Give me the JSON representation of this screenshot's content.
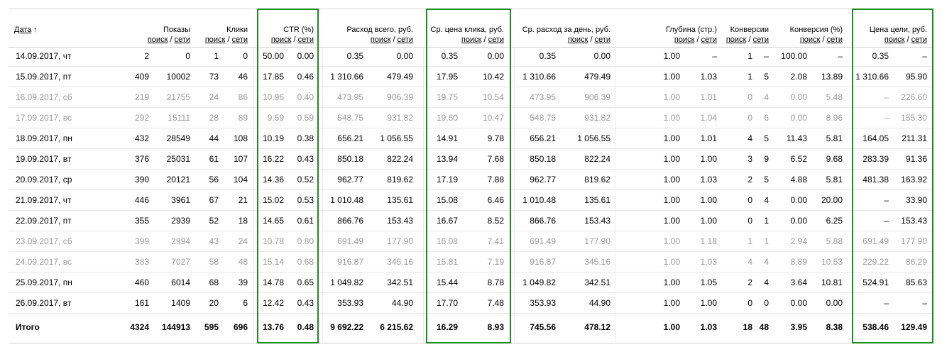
{
  "header": {
    "date": {
      "label": "Дата",
      "sort_indicator": "↑"
    },
    "sublabels": [
      "поиск",
      "сети"
    ],
    "separator": "/",
    "groups": [
      {
        "title": "Показы",
        "highlighted": false
      },
      {
        "title": "Клики",
        "highlighted": false
      },
      {
        "title": "CTR (%)",
        "highlighted": true
      },
      {
        "title": "Расход всего, руб.",
        "highlighted": false
      },
      {
        "title": "Ср. цена клика, руб.",
        "highlighted": true
      },
      {
        "title": "Ср. расход за день, руб.",
        "highlighted": false
      },
      {
        "title": "Глубина (стр.)",
        "highlighted": false
      },
      {
        "title": "Конверсии",
        "highlighted": false
      },
      {
        "title": "Конверсия (%)",
        "highlighted": false
      },
      {
        "title": "Цена цели, руб.",
        "highlighted": true
      }
    ]
  },
  "table": {
    "rows": [
      {
        "style": "normal",
        "cells": [
          "14.09.2017, чт",
          "2",
          "0",
          "1",
          "0",
          "50.00",
          "0.00",
          "0.35",
          "0.00",
          "0.35",
          "0.00",
          "0.35",
          "0.00",
          "1.00",
          "–",
          "1",
          "–",
          "100.00",
          "–",
          "0.35",
          "–"
        ]
      },
      {
        "style": "normal",
        "cells": [
          "15.09.2017, пт",
          "409",
          "10002",
          "73",
          "46",
          "17.85",
          "0.46",
          "1 310.66",
          "479.49",
          "17.95",
          "10.42",
          "1 310.66",
          "479.49",
          "1.00",
          "1.03",
          "1",
          "5",
          "2.08",
          "13.89",
          "1 310.66",
          "95.90"
        ]
      },
      {
        "style": "muted",
        "cells": [
          "16.09.2017, сб",
          "219",
          "21755",
          "24",
          "86",
          "10.96",
          "0.40",
          "473.95",
          "906.39",
          "19.75",
          "10.54",
          "473.95",
          "906.39",
          "1.00",
          "1.01",
          "0",
          "4",
          "0.00",
          "5.48",
          "–",
          "226.60"
        ]
      },
      {
        "style": "muted",
        "cells": [
          "17.09.2017, вс",
          "292",
          "15111",
          "28",
          "89",
          "9.59",
          "0.59",
          "548.75",
          "931.82",
          "19.60",
          "10.47",
          "548.75",
          "931.82",
          "1.00",
          "1.04",
          "0",
          "6",
          "0.00",
          "8.96",
          "–",
          "155.30"
        ]
      },
      {
        "style": "normal",
        "cells": [
          "18.09.2017, пн",
          "432",
          "28549",
          "44",
          "108",
          "10.19",
          "0.38",
          "656.21",
          "1 056.55",
          "14.91",
          "9.78",
          "656.21",
          "1 056.55",
          "1.00",
          "1.01",
          "4",
          "5",
          "11.43",
          "5.81",
          "164.05",
          "211.31"
        ]
      },
      {
        "style": "normal",
        "cells": [
          "19.09.2017, вт",
          "376",
          "25031",
          "61",
          "107",
          "16.22",
          "0.43",
          "850.18",
          "822.24",
          "13.94",
          "7.68",
          "850.18",
          "822.24",
          "1.00",
          "1.00",
          "3",
          "9",
          "6.52",
          "9.68",
          "283.39",
          "91.36"
        ]
      },
      {
        "style": "normal",
        "cells": [
          "20.09.2017, ср",
          "390",
          "20121",
          "56",
          "104",
          "14.36",
          "0.52",
          "962.77",
          "819.62",
          "17.19",
          "7.88",
          "962.77",
          "819.62",
          "1.00",
          "1.03",
          "2",
          "5",
          "4.88",
          "5.81",
          "481.38",
          "163.92"
        ]
      },
      {
        "style": "normal",
        "cells": [
          "21.09.2017, чт",
          "446",
          "3961",
          "67",
          "21",
          "15.02",
          "0.53",
          "1 010.48",
          "135.61",
          "15.08",
          "6.46",
          "1 010.48",
          "135.61",
          "1.00",
          "1.00",
          "0",
          "4",
          "0.00",
          "20.00",
          "–",
          "33.90"
        ]
      },
      {
        "style": "normal",
        "cells": [
          "22.09.2017, пт",
          "355",
          "2939",
          "52",
          "18",
          "14.65",
          "0.61",
          "866.76",
          "153.43",
          "16.67",
          "8.52",
          "866.76",
          "153.43",
          "1.00",
          "1.00",
          "0",
          "1",
          "0.00",
          "6.25",
          "–",
          "153.43"
        ]
      },
      {
        "style": "muted",
        "cells": [
          "23.09.2017, сб",
          "399",
          "2994",
          "43",
          "24",
          "10.78",
          "0.80",
          "691.49",
          "177.90",
          "16.08",
          "7.41",
          "691.49",
          "177.90",
          "1.00",
          "1.18",
          "1",
          "1",
          "2.94",
          "5.88",
          "691.49",
          "177.90"
        ]
      },
      {
        "style": "muted",
        "cells": [
          "24.09.2017, вс",
          "383",
          "7027",
          "58",
          "48",
          "15.14",
          "0.68",
          "916.87",
          "345.16",
          "15.81",
          "7.19",
          "916.87",
          "345.16",
          "1.00",
          "1.03",
          "4",
          "4",
          "8.89",
          "10.53",
          "229.22",
          "86.29"
        ]
      },
      {
        "style": "normal",
        "cells": [
          "25.09.2017, пн",
          "460",
          "6014",
          "68",
          "39",
          "14.78",
          "0.65",
          "1 049.82",
          "342.51",
          "15.44",
          "8.78",
          "1 049.82",
          "342.51",
          "1.00",
          "1.05",
          "2",
          "4",
          "3.64",
          "10.81",
          "524.91",
          "85.63"
        ]
      },
      {
        "style": "normal",
        "cells": [
          "26.09.2017, вт",
          "161",
          "1409",
          "20",
          "6",
          "12.42",
          "0.43",
          "353.93",
          "44.90",
          "17.70",
          "7.48",
          "353.93",
          "44.90",
          "1.00",
          "1.00",
          "0",
          "0",
          "0.00",
          "0.00",
          "–",
          "–"
        ]
      }
    ],
    "total": {
      "cells": [
        "Итого",
        "4324",
        "144913",
        "595",
        "696",
        "13.76",
        "0.48",
        "9 692.22",
        "6 215.62",
        "16.29",
        "8.93",
        "745.56",
        "478.12",
        "1.00",
        "1.03",
        "18",
        "48",
        "3.95",
        "8.38",
        "538.46",
        "129.49"
      ]
    }
  }
}
